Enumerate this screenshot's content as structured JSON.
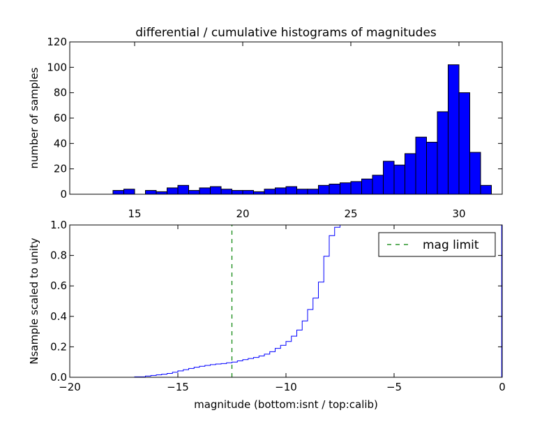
{
  "chart_data": [
    {
      "type": "bar",
      "title": "differential / cumulative histograms of magnitudes",
      "xlabel": "",
      "ylabel": "number of samples",
      "xlim": [
        12,
        32
      ],
      "ylim": [
        0,
        120
      ],
      "x_ticks": [
        15,
        20,
        25,
        30
      ],
      "y_ticks": [
        0,
        20,
        40,
        60,
        80,
        100,
        120
      ],
      "x_tick_position": "top",
      "bar_color": "#0000ff",
      "bin_width": 0.5,
      "bin_left_edges": [
        13.5,
        14.0,
        14.5,
        15.0,
        15.5,
        16.0,
        16.5,
        17.0,
        17.5,
        18.0,
        18.5,
        19.0,
        19.5,
        20.0,
        20.5,
        21.0,
        21.5,
        22.0,
        22.5,
        23.0,
        23.5,
        24.0,
        24.5,
        25.0,
        25.5,
        26.0,
        26.5,
        27.0,
        27.5,
        28.0,
        28.5,
        29.0,
        29.5,
        30.0,
        30.5,
        31.0
      ],
      "values": [
        0,
        3,
        4,
        0,
        3,
        2,
        5,
        7,
        3,
        5,
        6,
        4,
        3,
        3,
        2,
        4,
        5,
        6,
        4,
        4,
        7,
        8,
        9,
        10,
        12,
        15,
        26,
        23,
        32,
        45,
        41,
        65,
        102,
        80,
        33,
        7
      ]
    },
    {
      "type": "line",
      "xlabel": "magnitude (bottom:isnt / top:calib)",
      "ylabel": "Nsample scaled to unity",
      "xlim": [
        -20,
        0
      ],
      "ylim": [
        0,
        1.0
      ],
      "x_ticks": [
        -20,
        -15,
        -10,
        -5,
        0
      ],
      "y_ticks": [
        0.0,
        0.2,
        0.4,
        0.6,
        0.8,
        1.0
      ],
      "legend_position": "top-right",
      "series": [
        {
          "color": "#0000ff",
          "style": "step",
          "x": [
            -20.0,
            -19.0,
            -18.0,
            -17.0,
            -16.5,
            -16.25,
            -16.0,
            -15.75,
            -15.5,
            -15.25,
            -15.0,
            -14.75,
            -14.5,
            -14.25,
            -14.0,
            -13.75,
            -13.5,
            -13.25,
            -13.0,
            -12.75,
            -12.5,
            -12.25,
            -12.0,
            -11.75,
            -11.5,
            -11.25,
            -11.0,
            -10.75,
            -10.5,
            -10.25,
            -10.0,
            -9.75,
            -9.5,
            -9.25,
            -9.0,
            -8.75,
            -8.5,
            -8.25,
            -8.0,
            -7.75,
            -7.5
          ],
          "y": [
            0.0,
            0.0,
            0.0,
            0.003,
            0.008,
            0.012,
            0.016,
            0.02,
            0.025,
            0.033,
            0.042,
            0.05,
            0.058,
            0.066,
            0.072,
            0.078,
            0.083,
            0.087,
            0.09,
            0.095,
            0.1,
            0.108,
            0.116,
            0.123,
            0.13,
            0.14,
            0.152,
            0.168,
            0.19,
            0.21,
            0.235,
            0.27,
            0.31,
            0.37,
            0.445,
            0.52,
            0.625,
            0.795,
            0.93,
            0.985,
            1.0
          ]
        },
        {
          "name": "mag limit",
          "color": "#008000",
          "style": "dashed-vertical",
          "x": [
            -12.5,
            -12.5
          ],
          "y": [
            0,
            1.0
          ]
        }
      ]
    }
  ]
}
